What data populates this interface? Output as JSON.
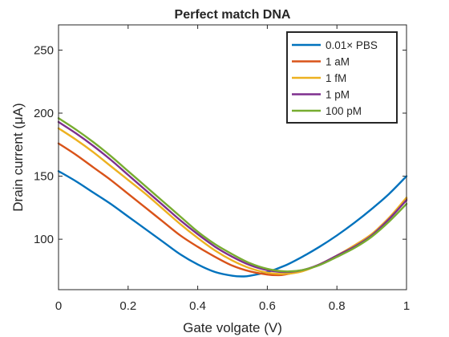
{
  "chart_data": {
    "type": "line",
    "title": "Perfect match DNA",
    "xlabel": "Gate volgate (V)",
    "ylabel": "Drain current (μA)",
    "xlim": [
      0,
      1
    ],
    "ylim": [
      60,
      270
    ],
    "x_ticks": [
      0,
      0.2,
      0.4,
      0.6,
      0.8,
      1
    ],
    "x_tick_labels": [
      "0",
      "0.2",
      "0.4",
      "0.6",
      "0.8",
      "1"
    ],
    "y_ticks": [
      100,
      150,
      200,
      250
    ],
    "y_tick_labels": [
      "100",
      "150",
      "200",
      "250"
    ],
    "grid": false,
    "legend_position": "top-right",
    "series": [
      {
        "name": "0.01× PBS",
        "color": "#0072BD",
        "x": [
          0,
          0.05,
          0.1,
          0.15,
          0.2,
          0.25,
          0.3,
          0.35,
          0.4,
          0.45,
          0.5,
          0.53,
          0.55,
          0.6,
          0.65,
          0.7,
          0.75,
          0.8,
          0.85,
          0.9,
          0.95,
          1
        ],
        "y": [
          154,
          146,
          137,
          128,
          118,
          108,
          98,
          88,
          80,
          74,
          71,
          70.5,
          71,
          74,
          79,
          86,
          94,
          103,
          113,
          124,
          136,
          150
        ]
      },
      {
        "name": "1 aM",
        "color": "#D95319",
        "x": [
          0,
          0.05,
          0.1,
          0.15,
          0.2,
          0.25,
          0.3,
          0.35,
          0.4,
          0.45,
          0.5,
          0.55,
          0.6,
          0.63,
          0.65,
          0.7,
          0.75,
          0.8,
          0.85,
          0.9,
          0.95,
          1
        ],
        "y": [
          176,
          167,
          157,
          147,
          136,
          125,
          114,
          103,
          94,
          86,
          79,
          74.5,
          72,
          71.5,
          72,
          75,
          80,
          87,
          95,
          104,
          117,
          132
        ]
      },
      {
        "name": "1 fM",
        "color": "#EDB120",
        "x": [
          0,
          0.05,
          0.1,
          0.15,
          0.2,
          0.25,
          0.3,
          0.35,
          0.4,
          0.45,
          0.5,
          0.55,
          0.6,
          0.65,
          0.7,
          0.75,
          0.8,
          0.85,
          0.9,
          0.95,
          1
        ],
        "y": [
          188,
          179,
          169,
          158,
          147,
          136,
          124,
          112,
          101,
          91,
          83,
          77,
          73.5,
          72.5,
          74.5,
          80,
          87,
          95,
          104,
          117,
          133
        ]
      },
      {
        "name": "1 pM",
        "color": "#7E2F8E",
        "x": [
          0,
          0.05,
          0.1,
          0.15,
          0.2,
          0.25,
          0.3,
          0.35,
          0.4,
          0.45,
          0.5,
          0.55,
          0.6,
          0.65,
          0.7,
          0.75,
          0.8,
          0.85,
          0.9,
          0.95,
          1
        ],
        "y": [
          193,
          184,
          174,
          163,
          151,
          139,
          127,
          115,
          104,
          94,
          86,
          79.5,
          75.5,
          74,
          75.5,
          80,
          87,
          94,
          103,
          116,
          131
        ]
      },
      {
        "name": "100 pM",
        "color": "#77AC30",
        "x": [
          0,
          0.05,
          0.1,
          0.15,
          0.2,
          0.25,
          0.3,
          0.35,
          0.4,
          0.45,
          0.5,
          0.55,
          0.6,
          0.65,
          0.7,
          0.75,
          0.8,
          0.85,
          0.9,
          0.95,
          1
        ],
        "y": [
          196,
          187,
          177,
          166,
          154,
          142,
          130,
          118,
          106,
          96,
          88,
          81,
          76.5,
          74.5,
          75.5,
          79.5,
          86,
          93,
          102,
          114,
          128
        ]
      }
    ]
  }
}
